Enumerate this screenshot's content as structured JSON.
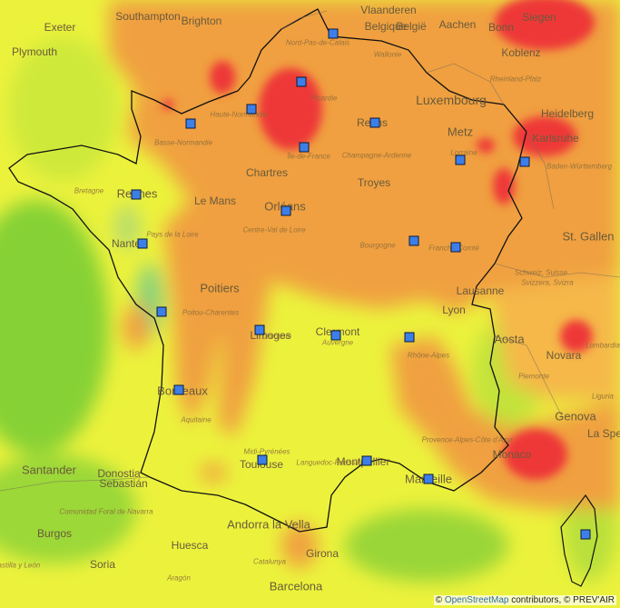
{
  "map": {
    "attribution_prefix": "© ",
    "attribution_link": "OpenStreetMap",
    "attribution_suffix": " contributors, © PREV'AIR",
    "colors": {
      "green": "#86d136",
      "yellow_green": "#c8e83a",
      "yellow": "#ecf23c",
      "light_orange": "#f5b84a",
      "orange": "#f0a040",
      "red": "#ee3838",
      "marker": "#3d7fe8",
      "border": "#111111"
    },
    "labels_major": [
      "Southampton",
      "Brighton",
      "Plymouth",
      "Exeter",
      "Vlaanderen",
      "Belgique",
      "België",
      "Aachen",
      "Bonn",
      "Siegen",
      "Koblenz",
      "Luxembourg",
      "Heidelberg",
      "Karlsruhe",
      "Metz",
      "Reims",
      "Chartres",
      "Troyes",
      "Rennes",
      "Le Mans",
      "Orléans",
      "Nantes",
      "Poitiers",
      "Limoges",
      "Lyon",
      "Clermont",
      "Lausanne",
      "St. Gallen",
      "Aosta",
      "Novara",
      "Genova",
      "Monaco",
      "Bordeaux",
      "Toulouse",
      "Montpellier",
      "Marseille",
      "Santander",
      "Donostia",
      "Sebastián",
      "Andorra la Vella",
      "Huesca",
      "Burgos",
      "Soria",
      "Girona",
      "Barcelona",
      "La Spe"
    ],
    "labels_regional": [
      "Nord-Pas-de-Calais",
      "Wallonie",
      "Picardie",
      "Haute-Normandie",
      "Basse-Normandie",
      "Île-de-France",
      "Champagne-Ardenne",
      "Lorraine",
      "Baden-Württemberg",
      "Rheinland-Pfalz",
      "Bretagne",
      "Pays de la Loire",
      "Centre-Val de Loire",
      "Bourgogne",
      "Franche-Comté",
      "Schweiz, Suisse",
      "Svizzera, Svizra",
      "Poitou-Charentes",
      "Limousin",
      "Auvergne",
      "Rhône-Alpes",
      "Lombardia",
      "Piemonte",
      "Liguria",
      "Aquitaine",
      "Midi-Pyrénées",
      "Languedoc-Roussillon",
      "Provence-Alpes-Côte d'Azur",
      "Comunidad Foral de Navarra",
      "Castilla y León",
      "Aragón",
      "Catalunya"
    ],
    "station_count": 22
  }
}
